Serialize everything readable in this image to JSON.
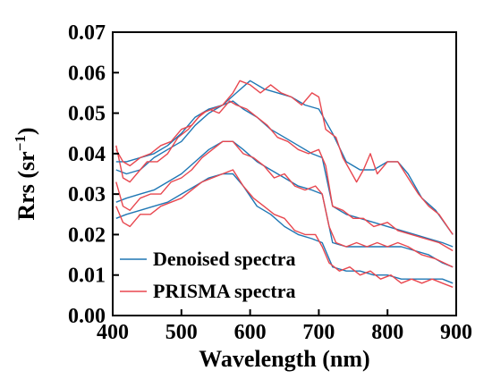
{
  "chart_data": {
    "type": "line",
    "title": "",
    "xlabel": "Wavelength (nm)",
    "ylabel": "Rrs (sr",
    "ylabel_sup": "−1",
    "ylabel_close": ")",
    "xlim": [
      400,
      900
    ],
    "ylim": [
      0,
      0.07
    ],
    "xticks": [
      400,
      500,
      600,
      700,
      800,
      900
    ],
    "xtick_labels": [
      "400",
      "500",
      "600",
      "700",
      "800",
      "900"
    ],
    "yticks": [
      0,
      0.01,
      0.02,
      0.03,
      0.04,
      0.05,
      0.06,
      0.07
    ],
    "ytick_labels": [
      "0.00",
      "0.01",
      "0.02",
      "0.03",
      "0.04",
      "0.05",
      "0.06",
      "0.07"
    ],
    "grid": false,
    "legend_position": "lower-left",
    "legend": [
      {
        "label": "Denoised spectra",
        "color": "#1f77b4"
      },
      {
        "label": "PRISMA spectra",
        "color": "#e8474f"
      }
    ],
    "colors": {
      "denoised": "#1f77b4",
      "prisma": "#e8474f"
    },
    "series": [
      {
        "legend_index": 0,
        "color": "#1f77b4",
        "points": [
          [
            405,
            0.036
          ],
          [
            420,
            0.035
          ],
          [
            440,
            0.036
          ],
          [
            460,
            0.039
          ],
          [
            480,
            0.041
          ],
          [
            500,
            0.043
          ],
          [
            520,
            0.047
          ],
          [
            540,
            0.05
          ],
          [
            560,
            0.052
          ],
          [
            575,
            0.053
          ],
          [
            590,
            0.051
          ],
          [
            610,
            0.049
          ],
          [
            630,
            0.046
          ],
          [
            650,
            0.044
          ],
          [
            670,
            0.042
          ],
          [
            690,
            0.04
          ],
          [
            705,
            0.039
          ],
          [
            720,
            0.027
          ],
          [
            740,
            0.025
          ],
          [
            760,
            0.024
          ],
          [
            780,
            0.023
          ],
          [
            800,
            0.022
          ],
          [
            820,
            0.021
          ],
          [
            840,
            0.02
          ],
          [
            860,
            0.019
          ],
          [
            880,
            0.018
          ],
          [
            895,
            0.017
          ]
        ]
      },
      {
        "legend_index": 1,
        "color": "#e8474f",
        "points": [
          [
            405,
            0.042
          ],
          [
            415,
            0.034
          ],
          [
            425,
            0.033
          ],
          [
            440,
            0.036
          ],
          [
            450,
            0.038
          ],
          [
            465,
            0.038
          ],
          [
            480,
            0.04
          ],
          [
            495,
            0.044
          ],
          [
            510,
            0.046
          ],
          [
            525,
            0.049
          ],
          [
            540,
            0.051
          ],
          [
            555,
            0.05
          ],
          [
            570,
            0.053
          ],
          [
            580,
            0.052
          ],
          [
            595,
            0.051
          ],
          [
            610,
            0.049
          ],
          [
            625,
            0.047
          ],
          [
            640,
            0.044
          ],
          [
            655,
            0.043
          ],
          [
            670,
            0.041
          ],
          [
            685,
            0.04
          ],
          [
            700,
            0.041
          ],
          [
            710,
            0.037
          ],
          [
            720,
            0.027
          ],
          [
            735,
            0.026
          ],
          [
            750,
            0.024
          ],
          [
            765,
            0.024
          ],
          [
            780,
            0.022
          ],
          [
            800,
            0.023
          ],
          [
            815,
            0.021
          ],
          [
            835,
            0.02
          ],
          [
            855,
            0.019
          ],
          [
            875,
            0.018
          ],
          [
            895,
            0.016
          ]
        ]
      },
      {
        "color": "#1f77b4",
        "points": [
          [
            405,
            0.038
          ],
          [
            420,
            0.038
          ],
          [
            440,
            0.039
          ],
          [
            460,
            0.04
          ],
          [
            480,
            0.042
          ],
          [
            500,
            0.045
          ],
          [
            520,
            0.049
          ],
          [
            540,
            0.051
          ],
          [
            560,
            0.052
          ],
          [
            580,
            0.055
          ],
          [
            600,
            0.058
          ],
          [
            620,
            0.056
          ],
          [
            640,
            0.055
          ],
          [
            660,
            0.054
          ],
          [
            680,
            0.052
          ],
          [
            700,
            0.051
          ],
          [
            720,
            0.045
          ],
          [
            740,
            0.038
          ],
          [
            760,
            0.036
          ],
          [
            780,
            0.036
          ],
          [
            800,
            0.038
          ],
          [
            815,
            0.038
          ],
          [
            830,
            0.035
          ],
          [
            850,
            0.029
          ],
          [
            870,
            0.026
          ],
          [
            895,
            0.02
          ]
        ]
      },
      {
        "color": "#e8474f",
        "points": [
          [
            405,
            0.041
          ],
          [
            415,
            0.038
          ],
          [
            425,
            0.037
          ],
          [
            440,
            0.039
          ],
          [
            455,
            0.04
          ],
          [
            470,
            0.042
          ],
          [
            485,
            0.043
          ],
          [
            500,
            0.046
          ],
          [
            515,
            0.047
          ],
          [
            530,
            0.05
          ],
          [
            545,
            0.051
          ],
          [
            560,
            0.052
          ],
          [
            575,
            0.055
          ],
          [
            585,
            0.058
          ],
          [
            600,
            0.057
          ],
          [
            615,
            0.055
          ],
          [
            630,
            0.057
          ],
          [
            645,
            0.055
          ],
          [
            660,
            0.054
          ],
          [
            675,
            0.052
          ],
          [
            690,
            0.055
          ],
          [
            700,
            0.054
          ],
          [
            710,
            0.046
          ],
          [
            725,
            0.044
          ],
          [
            735,
            0.039
          ],
          [
            745,
            0.036
          ],
          [
            755,
            0.033
          ],
          [
            765,
            0.036
          ],
          [
            775,
            0.04
          ],
          [
            785,
            0.035
          ],
          [
            800,
            0.038
          ],
          [
            815,
            0.038
          ],
          [
            830,
            0.034
          ],
          [
            845,
            0.03
          ],
          [
            860,
            0.027
          ],
          [
            875,
            0.025
          ],
          [
            895,
            0.02
          ]
        ]
      },
      {
        "color": "#1f77b4",
        "points": [
          [
            405,
            0.028
          ],
          [
            420,
            0.029
          ],
          [
            440,
            0.03
          ],
          [
            460,
            0.031
          ],
          [
            480,
            0.033
          ],
          [
            500,
            0.035
          ],
          [
            520,
            0.038
          ],
          [
            540,
            0.041
          ],
          [
            560,
            0.043
          ],
          [
            575,
            0.043
          ],
          [
            590,
            0.041
          ],
          [
            610,
            0.038
          ],
          [
            630,
            0.036
          ],
          [
            650,
            0.034
          ],
          [
            670,
            0.032
          ],
          [
            690,
            0.031
          ],
          [
            705,
            0.03
          ],
          [
            720,
            0.018
          ],
          [
            740,
            0.017
          ],
          [
            760,
            0.017
          ],
          [
            780,
            0.017
          ],
          [
            800,
            0.017
          ],
          [
            820,
            0.017
          ],
          [
            840,
            0.016
          ],
          [
            860,
            0.015
          ],
          [
            880,
            0.013
          ],
          [
            895,
            0.012
          ]
        ]
      },
      {
        "color": "#e8474f",
        "points": [
          [
            405,
            0.033
          ],
          [
            415,
            0.027
          ],
          [
            425,
            0.026
          ],
          [
            440,
            0.029
          ],
          [
            455,
            0.03
          ],
          [
            470,
            0.03
          ],
          [
            485,
            0.033
          ],
          [
            500,
            0.034
          ],
          [
            515,
            0.036
          ],
          [
            530,
            0.039
          ],
          [
            545,
            0.041
          ],
          [
            560,
            0.043
          ],
          [
            575,
            0.043
          ],
          [
            590,
            0.04
          ],
          [
            605,
            0.039
          ],
          [
            620,
            0.037
          ],
          [
            635,
            0.034
          ],
          [
            650,
            0.035
          ],
          [
            665,
            0.032
          ],
          [
            680,
            0.031
          ],
          [
            695,
            0.032
          ],
          [
            705,
            0.03
          ],
          [
            715,
            0.022
          ],
          [
            725,
            0.018
          ],
          [
            740,
            0.017
          ],
          [
            755,
            0.018
          ],
          [
            770,
            0.017
          ],
          [
            785,
            0.018
          ],
          [
            800,
            0.017
          ],
          [
            815,
            0.018
          ],
          [
            830,
            0.017
          ],
          [
            850,
            0.015
          ],
          [
            870,
            0.014
          ],
          [
            895,
            0.012
          ]
        ]
      },
      {
        "color": "#1f77b4",
        "points": [
          [
            405,
            0.024
          ],
          [
            420,
            0.025
          ],
          [
            440,
            0.026
          ],
          [
            460,
            0.027
          ],
          [
            480,
            0.028
          ],
          [
            500,
            0.03
          ],
          [
            520,
            0.032
          ],
          [
            540,
            0.034
          ],
          [
            560,
            0.035
          ],
          [
            575,
            0.035
          ],
          [
            590,
            0.032
          ],
          [
            610,
            0.027
          ],
          [
            630,
            0.025
          ],
          [
            650,
            0.022
          ],
          [
            670,
            0.02
          ],
          [
            690,
            0.019
          ],
          [
            705,
            0.018
          ],
          [
            720,
            0.012
          ],
          [
            740,
            0.011
          ],
          [
            760,
            0.011
          ],
          [
            780,
            0.01
          ],
          [
            800,
            0.01
          ],
          [
            820,
            0.009
          ],
          [
            840,
            0.009
          ],
          [
            860,
            0.009
          ],
          [
            880,
            0.009
          ],
          [
            895,
            0.008
          ]
        ]
      },
      {
        "color": "#e8474f",
        "points": [
          [
            405,
            0.027
          ],
          [
            415,
            0.023
          ],
          [
            425,
            0.022
          ],
          [
            440,
            0.025
          ],
          [
            455,
            0.025
          ],
          [
            470,
            0.027
          ],
          [
            485,
            0.028
          ],
          [
            500,
            0.029
          ],
          [
            515,
            0.031
          ],
          [
            530,
            0.033
          ],
          [
            545,
            0.034
          ],
          [
            560,
            0.035
          ],
          [
            575,
            0.036
          ],
          [
            590,
            0.032
          ],
          [
            605,
            0.029
          ],
          [
            620,
            0.027
          ],
          [
            635,
            0.025
          ],
          [
            650,
            0.024
          ],
          [
            665,
            0.021
          ],
          [
            680,
            0.02
          ],
          [
            695,
            0.02
          ],
          [
            705,
            0.017
          ],
          [
            715,
            0.013
          ],
          [
            730,
            0.011
          ],
          [
            745,
            0.012
          ],
          [
            760,
            0.01
          ],
          [
            775,
            0.011
          ],
          [
            790,
            0.009
          ],
          [
            805,
            0.01
          ],
          [
            820,
            0.008
          ],
          [
            835,
            0.009
          ],
          [
            850,
            0.008
          ],
          [
            865,
            0.009
          ],
          [
            880,
            0.008
          ],
          [
            895,
            0.007
          ]
        ]
      }
    ]
  }
}
